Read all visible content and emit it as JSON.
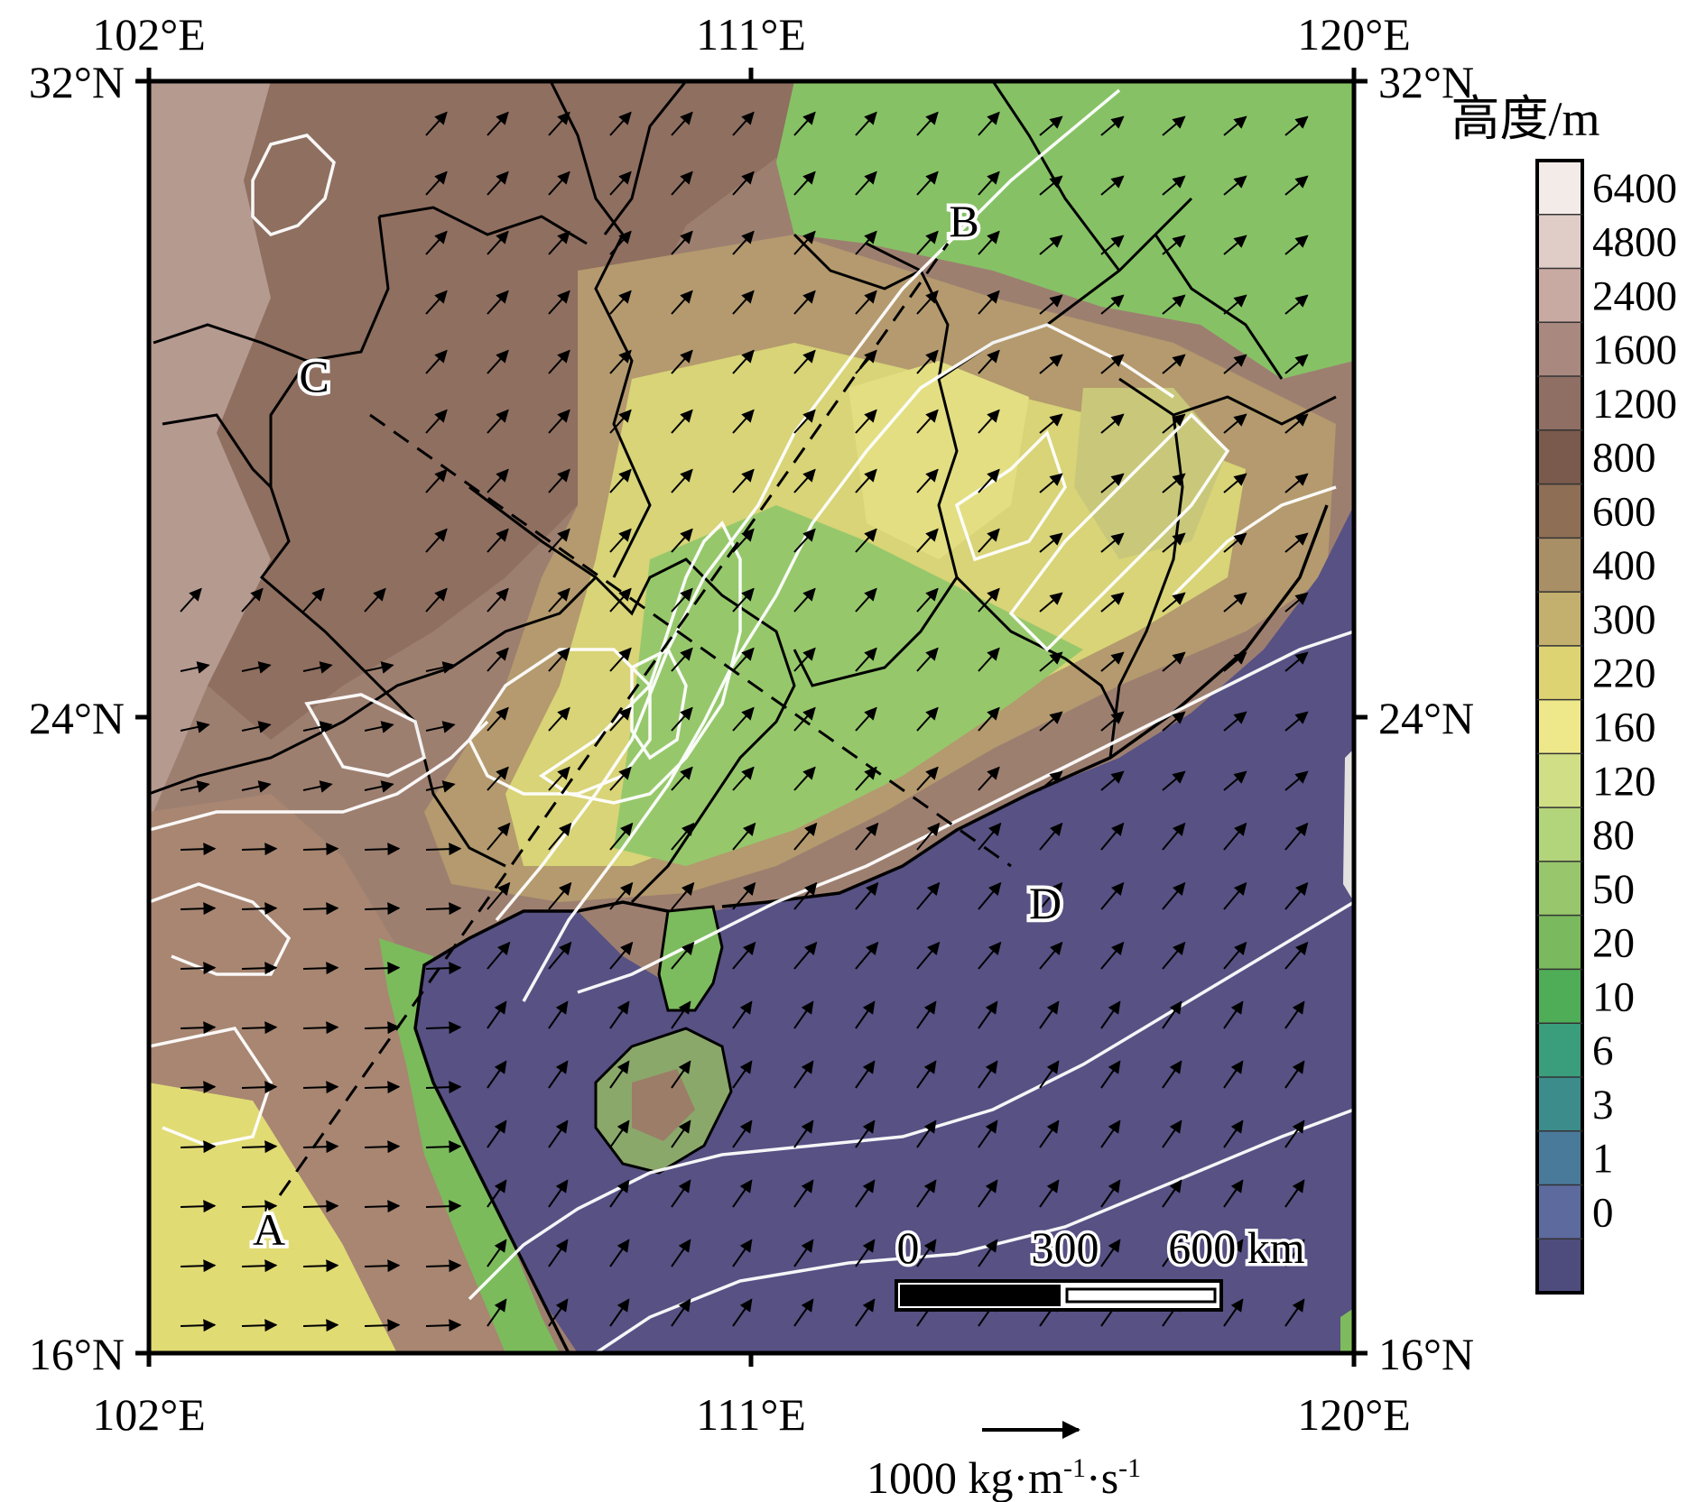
{
  "map": {
    "lon_ticks_top": [
      "102°E",
      "111°E",
      "120°E"
    ],
    "lon_ticks_bottom": [
      "102°E",
      "111°E",
      "120°E"
    ],
    "lat_ticks_left": [
      "32°N",
      "24°N",
      "16°N"
    ],
    "lat_ticks_right": [
      "32°N",
      "24°N",
      "16°N"
    ],
    "extent": {
      "lon": [
        102,
        120
      ],
      "lat": [
        16,
        32
      ]
    },
    "points": [
      "A",
      "B",
      "C",
      "D"
    ],
    "sections": [
      "A–B",
      "C–D"
    ]
  },
  "colorbar": {
    "title": "高度/m",
    "levels": [
      "6400",
      "4800",
      "2400",
      "1600",
      "1200",
      "800",
      "600",
      "400",
      "300",
      "220",
      "160",
      "120",
      "80",
      "50",
      "20",
      "10",
      "6",
      "3",
      "1",
      "0"
    ],
    "colors": [
      "#f2ebe8",
      "#e0cdc7",
      "#c9aaa3",
      "#a98880",
      "#8f6e64",
      "#7a5a4c",
      "#8e6f55",
      "#a88f66",
      "#c4b06e",
      "#ddd372",
      "#eee88a",
      "#d0df86",
      "#b2d47a",
      "#97c66c",
      "#7ab95e",
      "#4fac57",
      "#3a9e7d",
      "#3d8c8c",
      "#4a7a9a",
      "#5d6a9e",
      "#4e4c7c"
    ]
  },
  "scale_bar": {
    "ticks": [
      "0",
      "300",
      "600 km"
    ]
  },
  "vector_legend": {
    "label": "1000 kg·m",
    "sup1": "-1",
    "mid": "·s",
    "sup2": "-1"
  },
  "theme": {
    "sea": "#575184",
    "lowland": "#7dbb5d",
    "plain": "#e6e27c",
    "hills": "#a6866c",
    "mountains": "#8e7064",
    "contour": "#ffffff",
    "border": "#000000"
  }
}
